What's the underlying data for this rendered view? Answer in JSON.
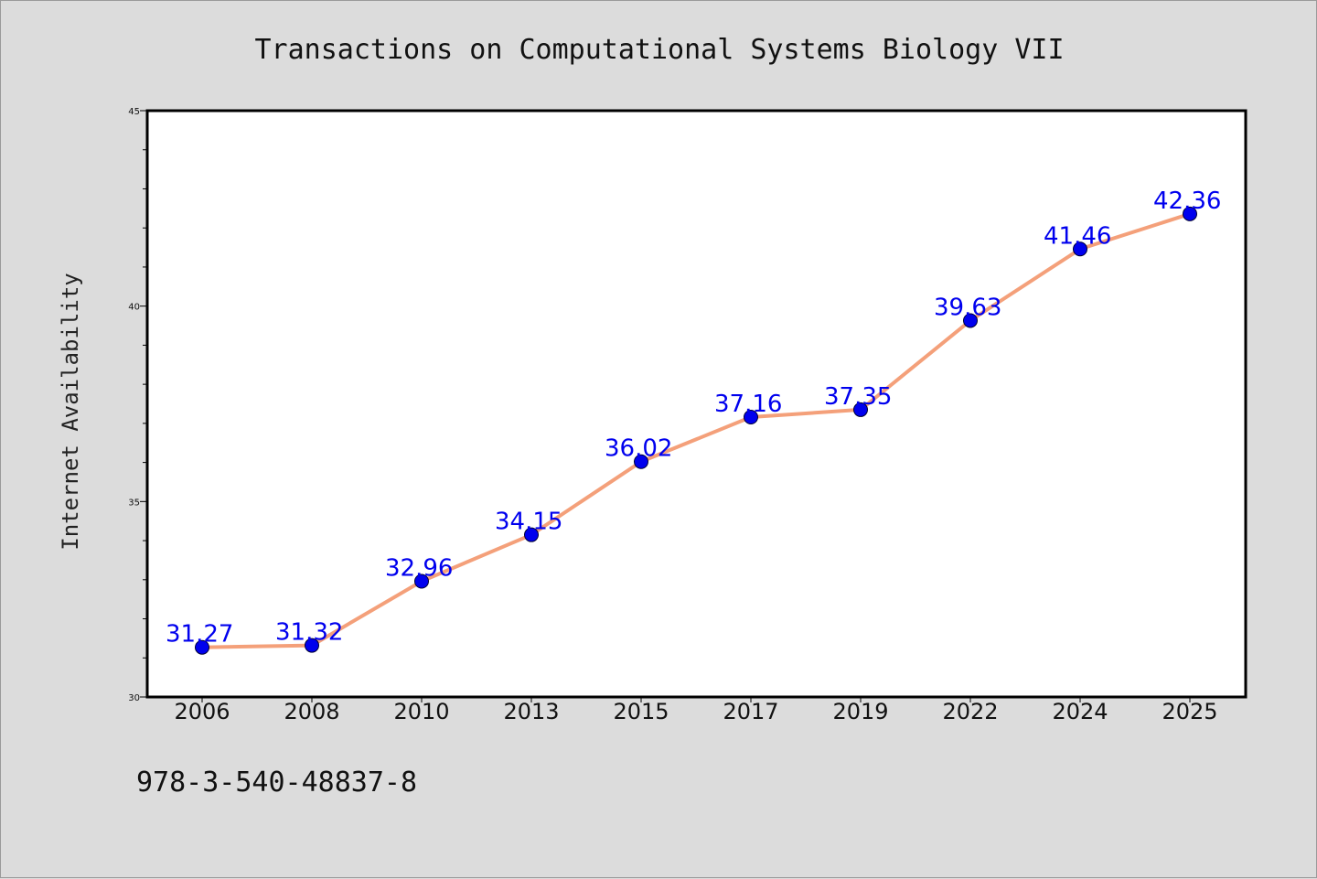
{
  "chart_data": {
    "type": "line",
    "title": "Transactions on Computational Systems Biology VII",
    "xlabel": "",
    "ylabel": "Internet Availability",
    "categories": [
      "2006",
      "2008",
      "2010",
      "2013",
      "2015",
      "2017",
      "2019",
      "2022",
      "2024",
      "2025"
    ],
    "series": [
      {
        "values": [
          31.27,
          31.32,
          32.96,
          34.15,
          36.02,
          37.16,
          37.35,
          39.63,
          41.46,
          42.36
        ],
        "line_color": "#f4a07a",
        "marker_color": "#0000ee"
      }
    ],
    "ylim": [
      30,
      45
    ],
    "y_major_ticks": [
      30,
      35,
      40,
      45
    ],
    "y_minor_step": 1,
    "data_labels": [
      "31.27",
      "31.32",
      "32.96",
      "34.15",
      "36.02",
      "37.16",
      "37.35",
      "39.63",
      "41.46",
      "42.36"
    ],
    "grid": false,
    "legend": "none"
  },
  "footer": {
    "isbn": "978-3-540-48837-8"
  },
  "colors": {
    "background": "#dcdcdc",
    "plot_background": "#ffffff",
    "line": "#f4a07a",
    "marker": "#0000ee",
    "data_label": "#0000ee"
  }
}
